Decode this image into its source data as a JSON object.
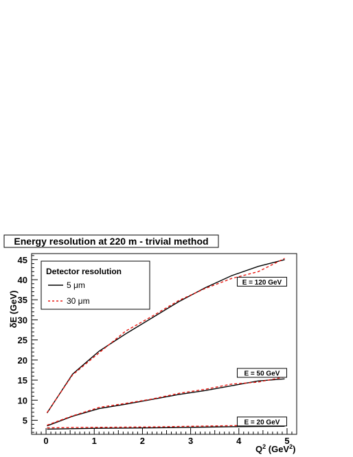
{
  "chart_data": {
    "type": "line",
    "title": "Energy resolution at 220 m - trivial method",
    "xlabel_main": "Q",
    "xlabel_sup": "2",
    "xlabel_unit_pre": " (GeV",
    "xlabel_unit_sup": "2",
    "xlabel_unit_post": ")",
    "ylabel": "δE (GeV)",
    "xlim": [
      -0.3,
      5.2
    ],
    "ylim": [
      1.5,
      46.5
    ],
    "xticks": [
      0,
      1,
      2,
      3,
      4,
      5
    ],
    "yticks": [
      5,
      10,
      15,
      20,
      25,
      30,
      35,
      40,
      45
    ],
    "grid": false,
    "legend": {
      "title": "Detector resolution",
      "position": "top-left",
      "entries": [
        {
          "label": "5 μm",
          "color": "#000000",
          "style": "solid"
        },
        {
          "label": "30 μm",
          "color": "#e8160f",
          "style": "dashed"
        }
      ]
    },
    "series": [
      {
        "name": "5 μm",
        "group": "E = 120 GeV",
        "color": "#000000",
        "style": "solid",
        "x": [
          0.02,
          0.55,
          1.1,
          1.65,
          2.2,
          2.75,
          3.3,
          3.85,
          4.4,
          4.95
        ],
        "y": [
          6.8,
          16.5,
          22.2,
          26.5,
          30.5,
          34.5,
          38.0,
          41.0,
          43.3,
          45.0
        ]
      },
      {
        "name": "30 μm",
        "group": "E = 120 GeV",
        "color": "#e8160f",
        "style": "dashed",
        "x": [
          0.02,
          0.55,
          1.1,
          1.65,
          2.2,
          2.75,
          3.3,
          3.85,
          4.4,
          4.95
        ],
        "y": [
          6.9,
          16.3,
          21.8,
          27.2,
          30.9,
          34.8,
          37.8,
          40.3,
          42.0,
          45.3
        ]
      },
      {
        "name": "5 μm",
        "group": "E = 50 GeV",
        "color": "#000000",
        "style": "solid",
        "x": [
          0.02,
          0.55,
          1.1,
          1.65,
          2.2,
          2.75,
          3.3,
          3.85,
          4.4,
          4.95
        ],
        "y": [
          3.6,
          6.0,
          7.9,
          9.0,
          10.2,
          11.4,
          12.4,
          13.6,
          14.8,
          15.3
        ]
      },
      {
        "name": "30 μm",
        "group": "E = 50 GeV",
        "color": "#e8160f",
        "style": "dashed",
        "x": [
          0.02,
          0.55,
          1.1,
          1.65,
          2.2,
          2.75,
          3.3,
          3.85,
          4.4,
          4.95
        ],
        "y": [
          3.8,
          6.1,
          8.2,
          9.2,
          10.3,
          11.7,
          12.7,
          14.0,
          14.5,
          15.8
        ]
      },
      {
        "name": "5 μm",
        "group": "E = 20 GeV",
        "color": "#000000",
        "style": "solid",
        "x": [
          0.02,
          0.55,
          1.1,
          1.65,
          2.2,
          2.75,
          3.3,
          3.85,
          4.4,
          4.95
        ],
        "y": [
          2.8,
          2.9,
          3.0,
          3.05,
          3.1,
          3.2,
          3.3,
          3.4,
          3.45,
          3.5
        ]
      },
      {
        "name": "30 μm",
        "group": "E = 20 GeV",
        "color": "#e8160f",
        "style": "dashed",
        "x": [
          0.02,
          0.55,
          1.1,
          1.65,
          2.2,
          2.75,
          3.3,
          3.85,
          4.4,
          4.95
        ],
        "y": [
          3.1,
          3.2,
          3.25,
          3.3,
          3.35,
          3.45,
          3.55,
          3.65,
          3.7,
          3.75
        ]
      }
    ],
    "annotations": [
      {
        "text": "E = 120 GeV",
        "x": 4.48,
        "y": 39.5
      },
      {
        "text": "E = 50 GeV",
        "x": 4.48,
        "y": 16.8
      },
      {
        "text": "E = 20 GeV",
        "x": 4.48,
        "y": 4.7
      }
    ]
  }
}
